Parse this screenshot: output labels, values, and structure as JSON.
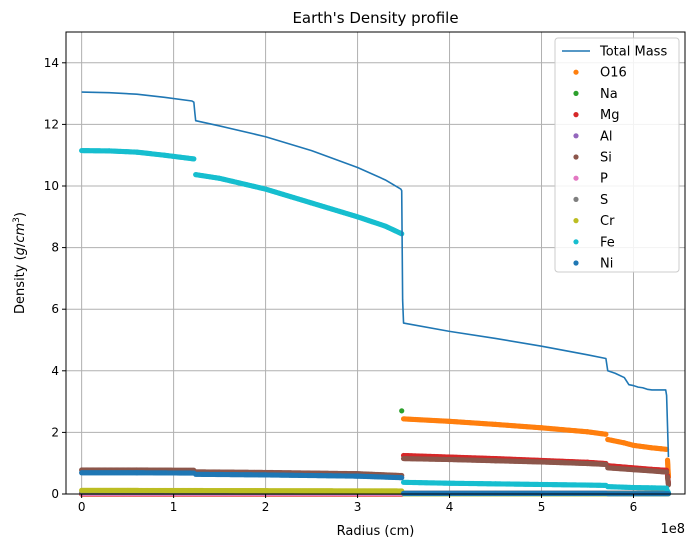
{
  "chart_data": {
    "type": "line",
    "title": "Earth's Density profile",
    "xlabel": "Radius (cm)",
    "ylabel_text": "Density (",
    "ylabel_unit_g": "g",
    "ylabel_unit_sep": "/",
    "ylabel_unit_cm": "cm",
    "ylabel_unit_exp": "3",
    "ylabel_close": ")",
    "x_offset_label": "1e8",
    "x_scale": 100000000,
    "xlim": [
      -17000000,
      656000000
    ],
    "ylim": [
      0,
      15
    ],
    "x_ticks": [
      0,
      100000000,
      200000000,
      300000000,
      400000000,
      500000000,
      600000000
    ],
    "x_tick_labels": [
      "0",
      "1",
      "2",
      "3",
      "4",
      "5",
      "6"
    ],
    "y_ticks": [
      0,
      2,
      4,
      6,
      8,
      10,
      12,
      14
    ],
    "y_tick_labels": [
      "0",
      "2",
      "4",
      "6",
      "8",
      "10",
      "12",
      "14"
    ],
    "grid": true,
    "legend_position": "top-right",
    "series": [
      {
        "name": "Total Mass",
        "style": "line",
        "color": "#1f77b4",
        "x": [
          0,
          30000000,
          60000000,
          90000000,
          120000000,
          122000000,
          123000000,
          124000000,
          150000000,
          200000000,
          250000000,
          300000000,
          330000000,
          347000000,
          348000000,
          349000000,
          350000000,
          400000000,
          450000000,
          500000000,
          550000000,
          570000000,
          572000000,
          580000000,
          590000000,
          595000000,
          600000000,
          605000000,
          610000000,
          615000000,
          620000000,
          630000000,
          635000000,
          636000000,
          637000000,
          638000000
        ],
        "y": [
          13.05,
          13.03,
          12.98,
          12.88,
          12.76,
          12.72,
          12.4,
          12.12,
          11.95,
          11.6,
          11.15,
          10.6,
          10.2,
          9.9,
          9.85,
          6.3,
          5.55,
          5.28,
          5.05,
          4.8,
          4.52,
          4.4,
          4.0,
          3.92,
          3.78,
          3.55,
          3.52,
          3.47,
          3.45,
          3.4,
          3.38,
          3.38,
          3.38,
          3.2,
          2.2,
          1.2
        ]
      },
      {
        "name": "O16",
        "style": "points",
        "color": "#ff7f0e",
        "segments": [
          {
            "x": [
              0,
              348000000
            ],
            "y": [
              0,
              0
            ]
          },
          {
            "x": [
              350000000,
              400000000,
              450000000,
              500000000,
              550000000,
              570000000
            ],
            "y": [
              2.44,
              2.36,
              2.26,
              2.15,
              2.02,
              1.94
            ]
          },
          {
            "x": [
              572000000,
              590000000,
              600000000,
              610000000,
              620000000,
              630000000,
              636000000
            ],
            "y": [
              1.77,
              1.66,
              1.58,
              1.54,
              1.5,
              1.47,
              1.45
            ]
          },
          {
            "x": [
              637000000,
              638000000
            ],
            "y": [
              1.1,
              0.55
            ]
          }
        ]
      },
      {
        "name": "Na",
        "style": "points",
        "color": "#2ca02c",
        "segments": [
          {
            "x": [
              0,
              638000000
            ],
            "y": [
              0.01,
              0.01
            ]
          },
          {
            "x": [
              348000000
            ],
            "y": [
              2.7
            ]
          }
        ]
      },
      {
        "name": "Mg",
        "style": "points",
        "color": "#d62728",
        "segments": [
          {
            "x": [
              0,
              348000000
            ],
            "y": [
              0,
              0
            ]
          },
          {
            "x": [
              350000000,
              400000000,
              450000000,
              500000000,
              550000000,
              570000000
            ],
            "y": [
              1.25,
              1.2,
              1.15,
              1.09,
              1.03,
              0.99
            ]
          },
          {
            "x": [
              572000000,
              600000000,
              620000000,
              636000000
            ],
            "y": [
              0.92,
              0.85,
              0.8,
              0.77
            ]
          },
          {
            "x": [
              637000000,
              638000000
            ],
            "y": [
              0.6,
              0.35
            ]
          }
        ]
      },
      {
        "name": "Al",
        "style": "points",
        "color": "#9467bd",
        "segments": [
          {
            "x": [
              0,
              638000000
            ],
            "y": [
              0.03,
              0.03
            ]
          }
        ]
      },
      {
        "name": "Si",
        "style": "points",
        "color": "#8c564b",
        "segments": [
          {
            "x": [
              0,
              60000000,
              122000000
            ],
            "y": [
              0.78,
              0.78,
              0.77
            ]
          },
          {
            "x": [
              124000000,
              200000000,
              300000000,
              348000000
            ],
            "y": [
              0.72,
              0.7,
              0.66,
              0.6
            ]
          },
          {
            "x": [
              350000000,
              400000000,
              450000000,
              500000000,
              550000000,
              570000000
            ],
            "y": [
              1.15,
              1.12,
              1.08,
              1.04,
              0.99,
              0.96
            ]
          },
          {
            "x": [
              572000000,
              600000000,
              620000000,
              636000000
            ],
            "y": [
              0.85,
              0.79,
              0.75,
              0.71
            ]
          },
          {
            "x": [
              637000000,
              638000000
            ],
            "y": [
              0.55,
              0.3
            ]
          }
        ]
      },
      {
        "name": "P",
        "style": "points",
        "color": "#e377c2",
        "segments": [
          {
            "x": [
              0,
              638000000
            ],
            "y": [
              0.02,
              0.02
            ]
          }
        ]
      },
      {
        "name": "S",
        "style": "points",
        "color": "#7f7f7f",
        "segments": [
          {
            "x": [
              0,
              348000000
            ],
            "y": [
              0.05,
              0.05
            ]
          },
          {
            "x": [
              350000000,
              638000000
            ],
            "y": [
              0.03,
              0.03
            ]
          }
        ]
      },
      {
        "name": "Cr",
        "style": "points",
        "color": "#bcbd22",
        "segments": [
          {
            "x": [
              0,
              348000000
            ],
            "y": [
              0.12,
              0.1
            ]
          },
          {
            "x": [
              350000000,
              638000000
            ],
            "y": [
              0.01,
              0.01
            ]
          }
        ]
      },
      {
        "name": "Fe",
        "style": "points",
        "color": "#17becf",
        "segments": [
          {
            "x": [
              0,
              30000000,
              60000000,
              90000000,
              122000000
            ],
            "y": [
              11.15,
              11.14,
              11.1,
              11.0,
              10.88
            ]
          },
          {
            "x": [
              124000000,
              150000000,
              200000000,
              250000000,
              300000000,
              330000000,
              348000000
            ],
            "y": [
              10.37,
              10.25,
              9.9,
              9.45,
              9.0,
              8.7,
              8.45
            ]
          },
          {
            "x": [
              350000000,
              400000000,
              450000000,
              500000000,
              550000000,
              570000000
            ],
            "y": [
              0.38,
              0.35,
              0.33,
              0.31,
              0.29,
              0.28
            ]
          },
          {
            "x": [
              572000000,
              600000000,
              620000000,
              636000000
            ],
            "y": [
              0.24,
              0.21,
              0.2,
              0.19
            ]
          },
          {
            "x": [
              637000000,
              638000000
            ],
            "y": [
              0.1,
              0.04
            ]
          }
        ]
      },
      {
        "name": "Ni",
        "style": "points",
        "color": "#1f77b4",
        "segments": [
          {
            "x": [
              0,
              60000000,
              122000000
            ],
            "y": [
              0.69,
              0.69,
              0.68
            ]
          },
          {
            "x": [
              124000000,
              200000000,
              300000000,
              348000000
            ],
            "y": [
              0.64,
              0.62,
              0.58,
              0.53
            ]
          },
          {
            "x": [
              350000000,
              450000000,
              570000000
            ],
            "y": [
              0.02,
              0.02,
              0.02
            ]
          },
          {
            "x": [
              572000000,
              638000000
            ],
            "y": [
              0.01,
              0.01
            ]
          }
        ]
      }
    ]
  }
}
